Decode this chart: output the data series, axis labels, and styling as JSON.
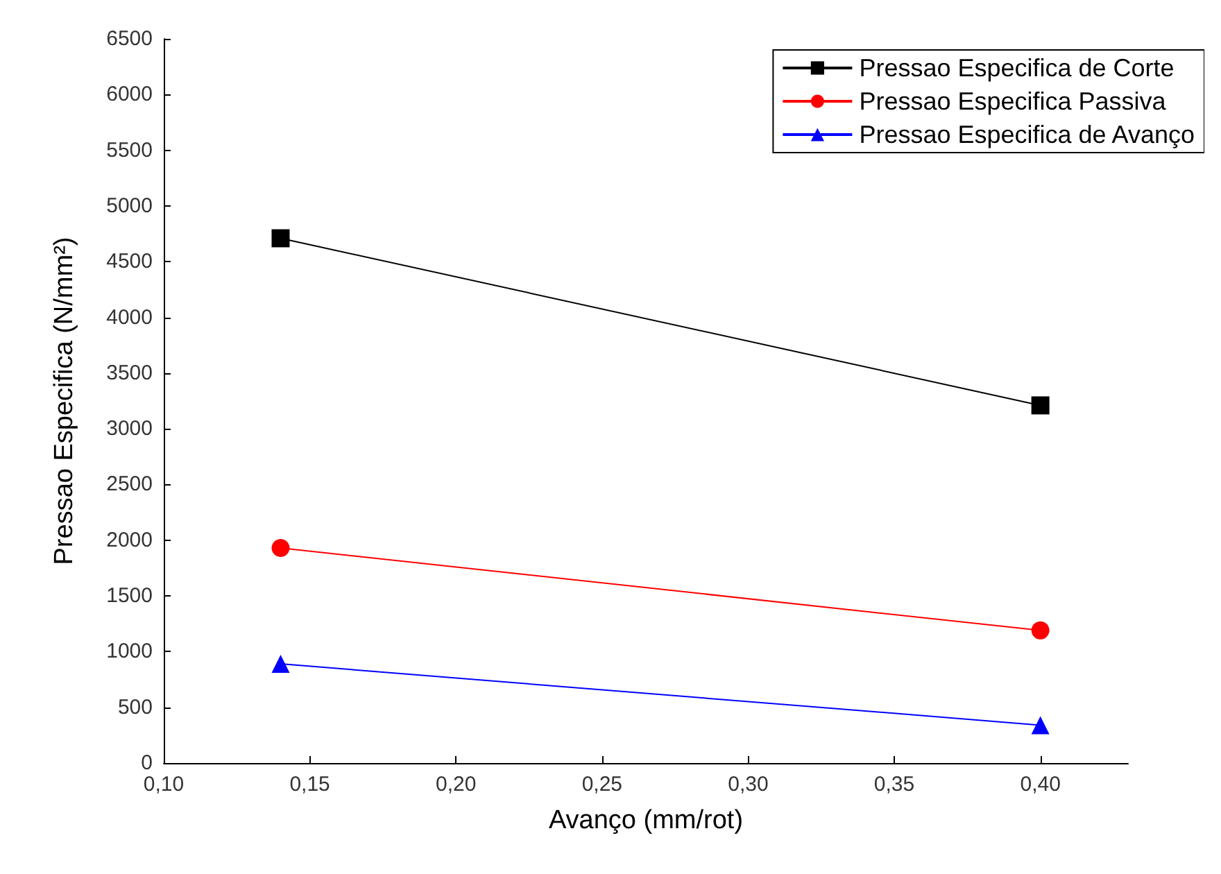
{
  "chart_data": {
    "type": "line",
    "xlabel": "Avanço (mm/rot)",
    "ylabel": "Pressao Especifica (N/mm²)",
    "x": [
      0.14,
      0.4
    ],
    "series": [
      {
        "name": "Pressao Especifica de Corte",
        "color": "#000000",
        "marker": "square",
        "values": [
          4710,
          3210
        ]
      },
      {
        "name": "Pressao Especifica Passiva",
        "color": "#ff0000",
        "marker": "circle",
        "values": [
          1930,
          1190
        ]
      },
      {
        "name": "Pressao Especifica de Avanço",
        "color": "#0000ff",
        "marker": "triangle",
        "values": [
          890,
          340
        ]
      }
    ],
    "xlim": [
      0.1,
      0.43
    ],
    "ylim": [
      0,
      6500
    ],
    "xticks": [
      {
        "value": 0.1,
        "label": "0,10"
      },
      {
        "value": 0.15,
        "label": "0,15"
      },
      {
        "value": 0.2,
        "label": "0,20"
      },
      {
        "value": 0.25,
        "label": "0,25"
      },
      {
        "value": 0.3,
        "label": "0,30"
      },
      {
        "value": 0.35,
        "label": "0,35"
      },
      {
        "value": 0.4,
        "label": "0,40"
      }
    ],
    "yticks": [
      0,
      500,
      1000,
      1500,
      2000,
      2500,
      3000,
      3500,
      4000,
      4500,
      5000,
      5500,
      6000,
      6500
    ],
    "grid": false,
    "legend": "top right"
  }
}
